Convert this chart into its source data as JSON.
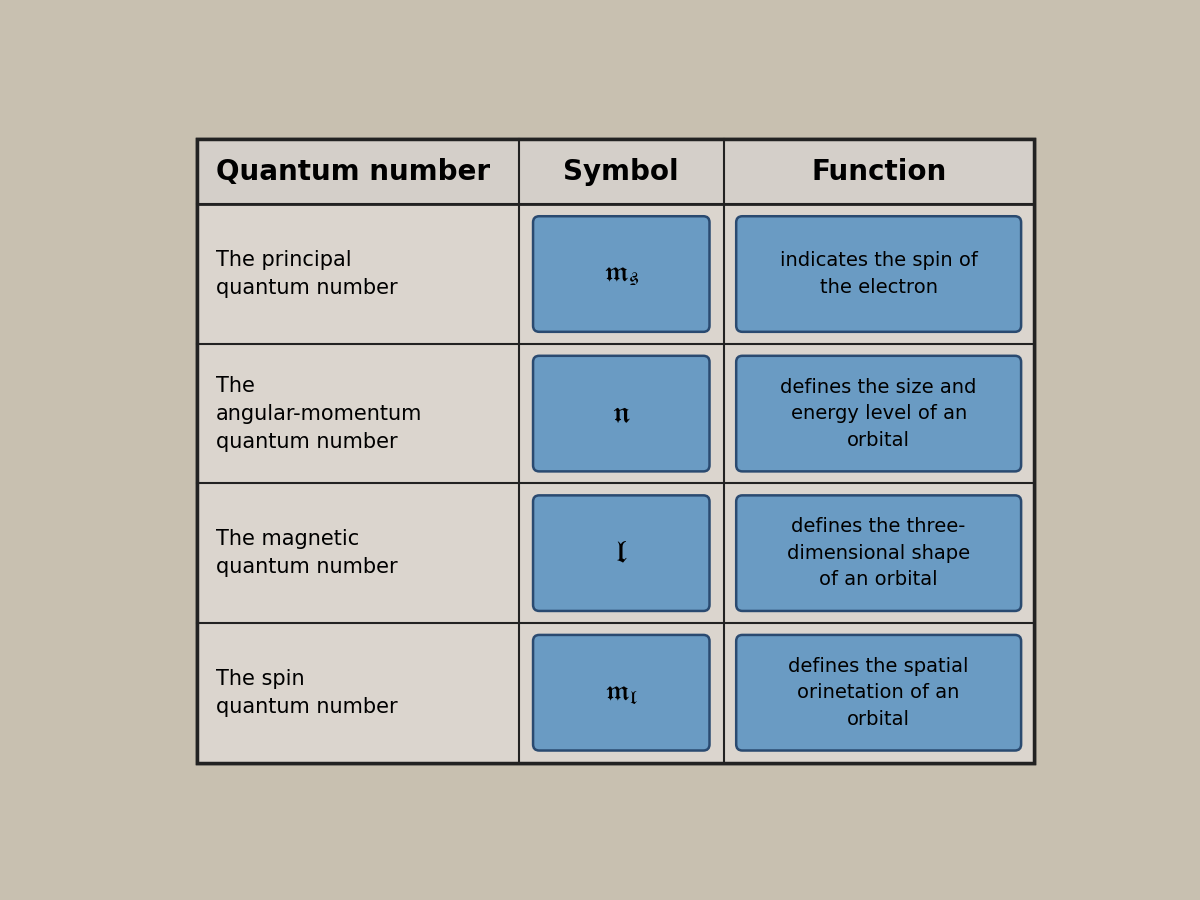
{
  "background_color": "#c8c0b0",
  "outer_border_color": "#222222",
  "table_bg": "#d4cfc8",
  "header_row": {
    "col1": "Quantum number",
    "col2": "Symbol",
    "col3": "Function",
    "text_color": "#000000",
    "font_size": 20,
    "font_weight": "bold"
  },
  "rows": [
    {
      "col1": "The principal\nquantum number",
      "col2_text": "m_s",
      "col3": "indicates the spin of\nthe electron"
    },
    {
      "col1": "The\nangular-momentum\nquantum number",
      "col2_text": "n",
      "col3": "defines the size and\nenergy level of an\norbital"
    },
    {
      "col1": "The magnetic\nquantum number",
      "col2_text": "l",
      "col3": "defines the three-\ndimensional shape\nof an orbital"
    },
    {
      "col1": "The spin\nquantum number",
      "col2_text": "m_l",
      "col3": "defines the spatial\norinetation of an\norbital"
    }
  ],
  "blue_box_color": "#6a9bc3",
  "blue_box_border": "#2a4a70",
  "cell_text_color": "#000000",
  "col1_fontsize": 15,
  "col3_fontsize": 14,
  "symbol_fontsize": 18
}
